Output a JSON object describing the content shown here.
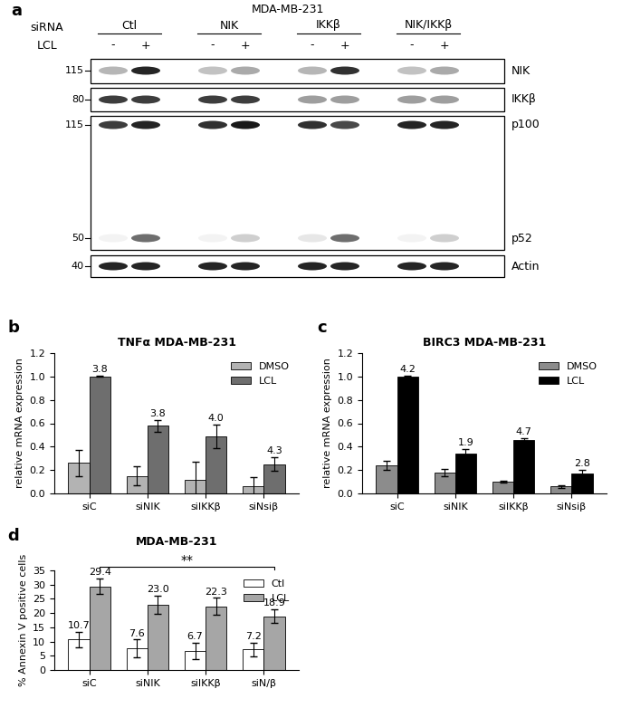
{
  "blot": {
    "panel": "a",
    "title": "MDA-MB-231",
    "row_labels": [
      "siRNA",
      "LCL"
    ],
    "groups": [
      "Ctl",
      "NIK",
      "IKKβ",
      "NIK/IKKβ"
    ],
    "treatment": [
      "-",
      "+"
    ],
    "markers": [
      115,
      80,
      115,
      50,
      40
    ],
    "proteins": [
      "NIK",
      "IKKβ",
      "p100",
      "p52",
      "Actin"
    ],
    "bands": {
      "NIK": [
        0.3,
        0.9,
        0.25,
        0.35,
        0.3,
        0.85,
        0.25,
        0.35
      ],
      "IKKβ": [
        0.8,
        0.8,
        0.8,
        0.8,
        0.4,
        0.4,
        0.4,
        0.4
      ],
      "p100": [
        0.8,
        0.9,
        0.85,
        0.95,
        0.85,
        0.75,
        0.9,
        0.9
      ],
      "p52": [
        0.05,
        0.6,
        0.05,
        0.2,
        0.1,
        0.6,
        0.05,
        0.2
      ],
      "Actin": [
        0.9,
        0.9,
        0.9,
        0.9,
        0.9,
        0.9,
        0.9,
        0.9
      ]
    }
  },
  "chart_data": [
    {
      "type": "bar",
      "panel": "b",
      "title": "TNFα MDA-MB-231",
      "y_label": "relative mRNA expression",
      "categories": [
        "siC",
        "siNIK",
        "siIKKβ",
        "siNsiβ"
      ],
      "series": [
        {
          "name": "DMSO",
          "color": "#b3b3b3",
          "values": [
            0.26,
            0.15,
            0.12,
            0.06
          ],
          "errors": [
            0.11,
            0.08,
            0.15,
            0.08
          ]
        },
        {
          "name": "LCL",
          "color": "#6e6e6e",
          "values": [
            1.0,
            0.58,
            0.49,
            0.25
          ],
          "errors": [
            0.005,
            0.05,
            0.1,
            0.06
          ],
          "annotations": [
            "3.8",
            "3.8",
            "4.0",
            "4.3"
          ]
        }
      ],
      "ylim": [
        0,
        1.2
      ],
      "yticks": [
        {
          "value": 0,
          "label": "0.0"
        },
        {
          "value": 0.2,
          "label": "0.2"
        },
        {
          "value": 0.4,
          "label": "0.4"
        },
        {
          "value": 0.6,
          "label": "0.6"
        },
        {
          "value": 0.8,
          "label": "0.8"
        },
        {
          "value": 1.0,
          "label": "1.0"
        },
        {
          "value": 1.2,
          "label": "1.2"
        }
      ],
      "legend": "upper right"
    },
    {
      "type": "bar",
      "panel": "c",
      "title": "BIRC3 MDA-MB-231",
      "y_label": "relative mRNA expression",
      "categories": [
        "siC",
        "siNIK",
        "siIKKβ",
        "siNsiβ"
      ],
      "series": [
        {
          "name": "DMSO",
          "color": "#8c8c8c",
          "values": [
            0.24,
            0.18,
            0.1,
            0.06
          ],
          "errors": [
            0.04,
            0.03,
            0.01,
            0.01
          ]
        },
        {
          "name": "LCL",
          "color": "#000000",
          "values": [
            1.0,
            0.34,
            0.46,
            0.17
          ],
          "errors": [
            0.005,
            0.04,
            0.01,
            0.03
          ],
          "annotations": [
            "4.2",
            "1.9",
            "4.7",
            "2.8"
          ]
        }
      ],
      "ylim": [
        0,
        1.2
      ],
      "yticks": [
        {
          "value": 0,
          "label": "0.0"
        },
        {
          "value": 0.2,
          "label": "0.2"
        },
        {
          "value": 0.4,
          "label": "0.4"
        },
        {
          "value": 0.6,
          "label": "0.6"
        },
        {
          "value": 0.8,
          "label": "0.8"
        },
        {
          "value": 1.0,
          "label": "1.0"
        },
        {
          "value": 1.2,
          "label": "1.2"
        }
      ],
      "legend": "upper right"
    },
    {
      "type": "bar",
      "panel": "d",
      "title": "MDA-MB-231",
      "y_label": "% Annexin V positive cells",
      "categories": [
        "siC",
        "siNIK",
        "siIKKβ",
        "siN/β"
      ],
      "series": [
        {
          "name": "Ctl",
          "color": "#ffffff",
          "values": [
            10.7,
            7.6,
            6.7,
            7.2
          ],
          "errors": [
            2.8,
            3.2,
            3.0,
            2.5
          ],
          "value_labels": [
            "10.7",
            "7.6",
            "6.7",
            "7.2"
          ]
        },
        {
          "name": "LCL",
          "color": "#a6a6a6",
          "values": [
            29.4,
            23.0,
            22.3,
            18.9
          ],
          "errors": [
            2.8,
            3.2,
            3.0,
            2.5
          ],
          "value_labels": [
            "29.4",
            "23.0",
            "22.3",
            "18.9"
          ]
        }
      ],
      "data_labels": true,
      "ylim": [
        0,
        35
      ],
      "yticks": [
        0,
        5,
        10,
        15,
        20,
        25,
        30,
        35
      ],
      "annotations": [
        {
          "text": "**",
          "between": [
            "siC",
            "siN/β"
          ]
        }
      ],
      "legend": "upper right"
    }
  ]
}
